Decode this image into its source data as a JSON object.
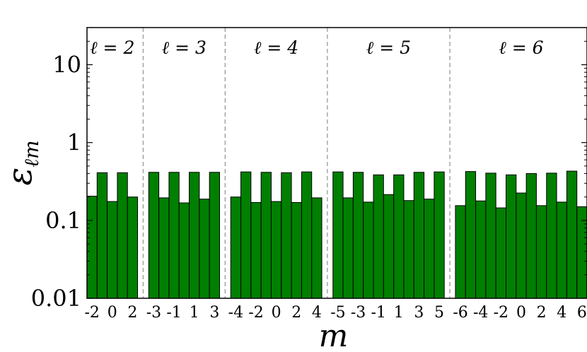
{
  "chart_data": {
    "type": "bar",
    "y_scale": "log",
    "ylim": [
      0.01,
      30
    ],
    "y_ticks": [
      {
        "value": 0.01,
        "label": "0.01"
      },
      {
        "value": 0.1,
        "label": "0.1"
      },
      {
        "value": 1,
        "label": "1"
      },
      {
        "value": 10,
        "label": "10"
      }
    ],
    "xlabel": "m",
    "ylabel": "ε",
    "ylabel_subscript": "ℓm",
    "bar_color": "#007f00",
    "bar_edge_color": "#000000",
    "divider_color": "#999999",
    "groups": [
      {
        "label": "ℓ = 2",
        "m": [
          -2,
          -1,
          0,
          1,
          2
        ],
        "tick_labels": [
          "-2",
          "0",
          "2"
        ],
        "values": [
          0.205,
          0.41,
          0.175,
          0.41,
          0.2
        ]
      },
      {
        "label": "ℓ = 3",
        "m": [
          -3,
          -2,
          -1,
          0,
          1,
          2,
          3
        ],
        "tick_labels": [
          "-3",
          "-1",
          "1",
          "3"
        ],
        "values": [
          0.415,
          0.195,
          0.415,
          0.168,
          0.415,
          0.188,
          0.415
        ]
      },
      {
        "label": "ℓ = 4",
        "m": [
          -4,
          -3,
          -2,
          -1,
          0,
          1,
          2,
          3,
          4
        ],
        "tick_labels": [
          "-4",
          "-2",
          "0",
          "2",
          "4"
        ],
        "values": [
          0.2,
          0.42,
          0.17,
          0.415,
          0.175,
          0.41,
          0.17,
          0.42,
          0.195
        ]
      },
      {
        "label": "ℓ = 5",
        "m": [
          -5,
          -4,
          -3,
          -2,
          -1,
          0,
          1,
          2,
          3,
          4,
          5
        ],
        "tick_labels": [
          "-5",
          "-3",
          "-1",
          "1",
          "3",
          "5"
        ],
        "values": [
          0.42,
          0.195,
          0.415,
          0.172,
          0.385,
          0.215,
          0.385,
          0.18,
          0.415,
          0.188,
          0.42
        ]
      },
      {
        "label": "ℓ = 6",
        "m": [
          -6,
          -5,
          -4,
          -3,
          -2,
          -1,
          0,
          1,
          2,
          3,
          4,
          5,
          6
        ],
        "tick_labels": [
          "-6",
          "-4",
          "-2",
          "0",
          "2",
          "4",
          "6"
        ],
        "values": [
          0.155,
          0.425,
          0.178,
          0.405,
          0.145,
          0.385,
          0.225,
          0.4,
          0.155,
          0.405,
          0.172,
          0.43,
          0.15
        ]
      }
    ]
  }
}
